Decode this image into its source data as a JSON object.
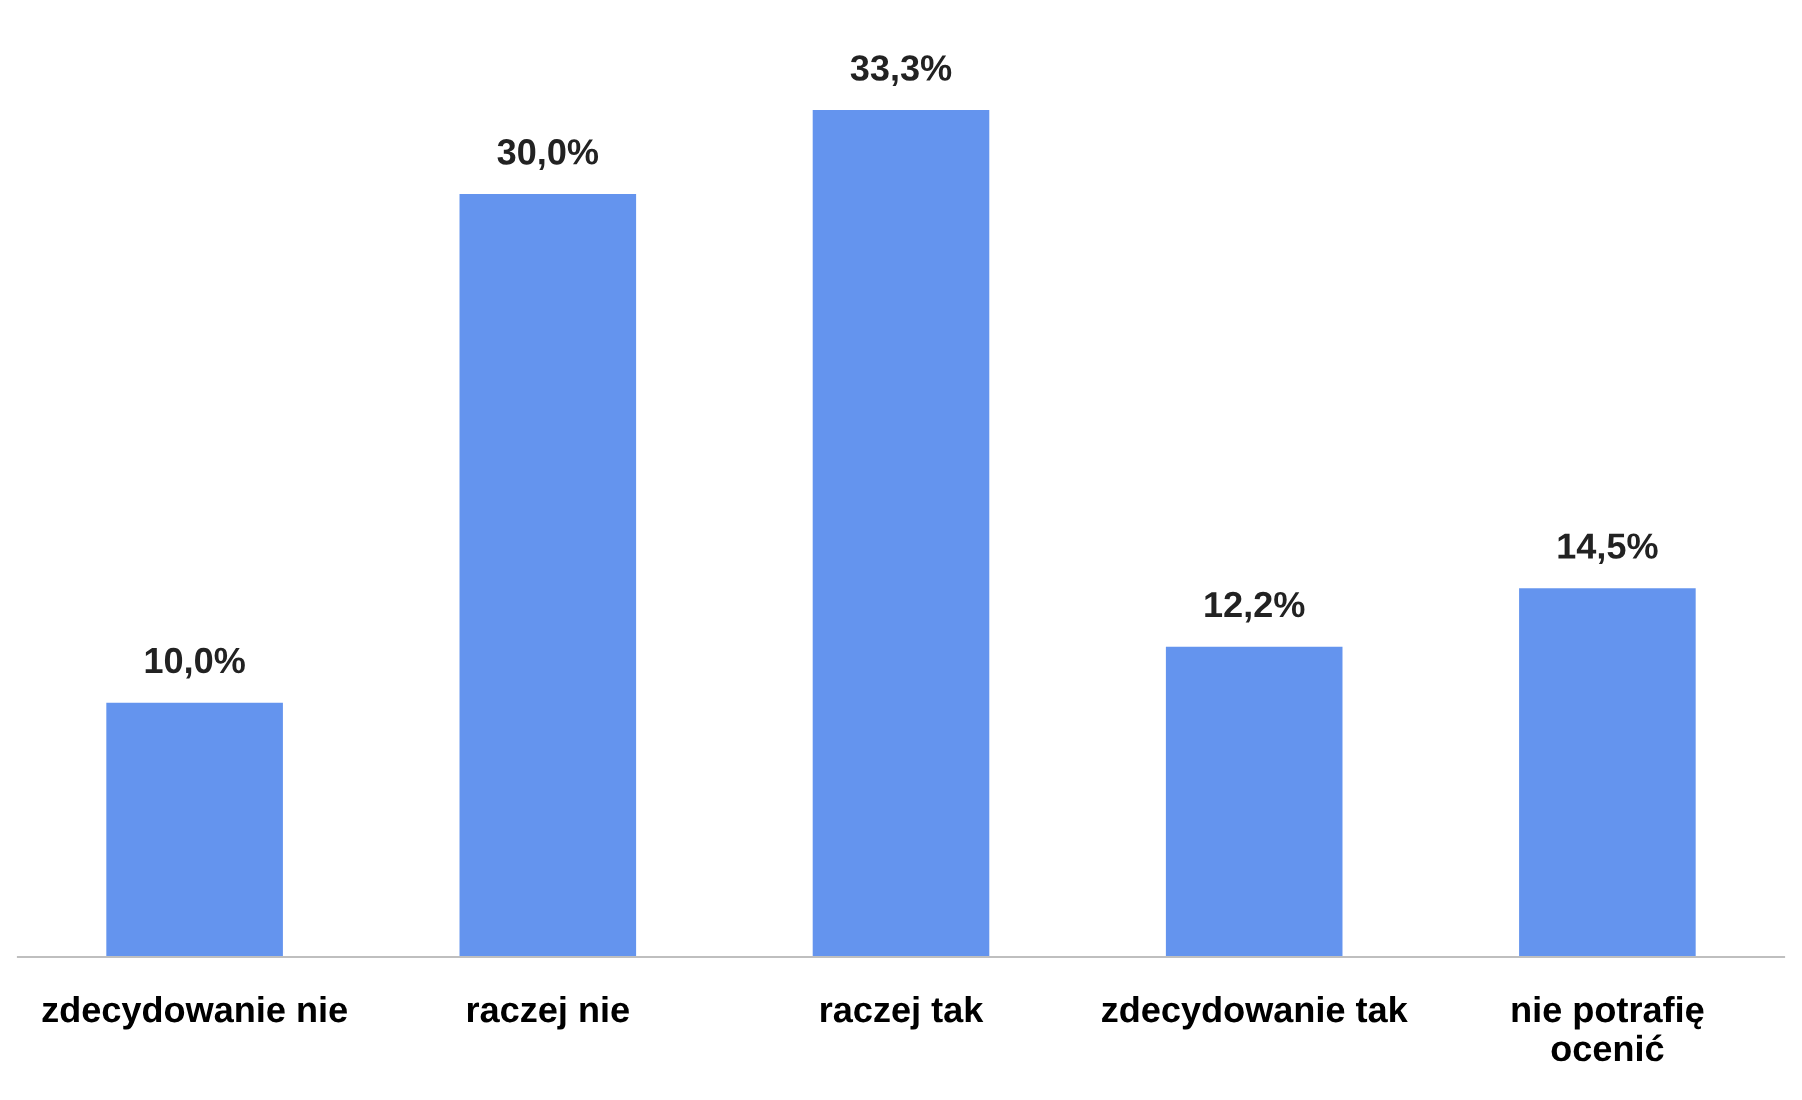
{
  "chart_data": {
    "type": "bar",
    "categories": [
      "zdecydowanie nie",
      "raczej nie",
      "raczej tak",
      "zdecydowanie tak",
      "nie potrafię\nocenić"
    ],
    "values": [
      10.0,
      30.0,
      33.3,
      12.2,
      14.5
    ],
    "value_labels": [
      "10,0%",
      "30,0%",
      "33,3%",
      "12,2%",
      "14,5%"
    ],
    "color": "#6494ee",
    "grid": false,
    "legend": false
  }
}
